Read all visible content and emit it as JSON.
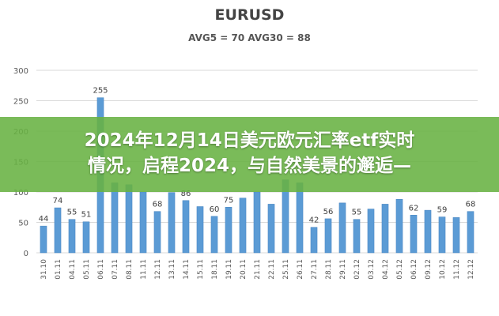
{
  "chart_data": {
    "type": "bar",
    "title": "EURUSD",
    "subtitle": "AVG5 = 70 AVG30 = 88",
    "ylim": [
      0,
      300
    ],
    "yticks": [
      0,
      50,
      100,
      150,
      200,
      250,
      300
    ],
    "grid": true,
    "bar_color": "#5b9bd5",
    "categories": [
      "31.10",
      "01.11",
      "04.11",
      "05.11",
      "06.11",
      "07.11",
      "08.11",
      "11.11",
      "12.11",
      "13.11",
      "14.11",
      "15.11",
      "18.11",
      "19.11",
      "20.11",
      "21.11",
      "22.11",
      "25.11",
      "26.11",
      "27.11",
      "28.11",
      "29.11",
      "02.12",
      "03.12",
      "04.12",
      "05.12",
      "06.12",
      "09.12",
      "10.12",
      "11.12",
      "12.12"
    ],
    "values": [
      44,
      74,
      55,
      51,
      255,
      115,
      112,
      100,
      68,
      99,
      86,
      76,
      60,
      75,
      90,
      100,
      80,
      120,
      115,
      42,
      56,
      82,
      55,
      72,
      80,
      88,
      62,
      70,
      59,
      58,
      68
    ],
    "data_labels": [
      {
        "index": 0,
        "text": "44"
      },
      {
        "index": 1,
        "text": "74"
      },
      {
        "index": 2,
        "text": "55"
      },
      {
        "index": 3,
        "text": "51"
      },
      {
        "index": 4,
        "text": "255"
      },
      {
        "index": 8,
        "text": "68"
      },
      {
        "index": 10,
        "text": "86"
      },
      {
        "index": 12,
        "text": "60"
      },
      {
        "index": 13,
        "text": "75"
      },
      {
        "index": 19,
        "text": "42"
      },
      {
        "index": 20,
        "text": "56"
      },
      {
        "index": 22,
        "text": "55"
      },
      {
        "index": 26,
        "text": "62"
      },
      {
        "index": 28,
        "text": "59"
      },
      {
        "index": 30,
        "text": "68"
      }
    ]
  },
  "banner": {
    "text": "2024年12月14日美元欧元汇率etf实时\n情况，启程2024，与自然美景的邂逅—",
    "color": "#68b242"
  }
}
